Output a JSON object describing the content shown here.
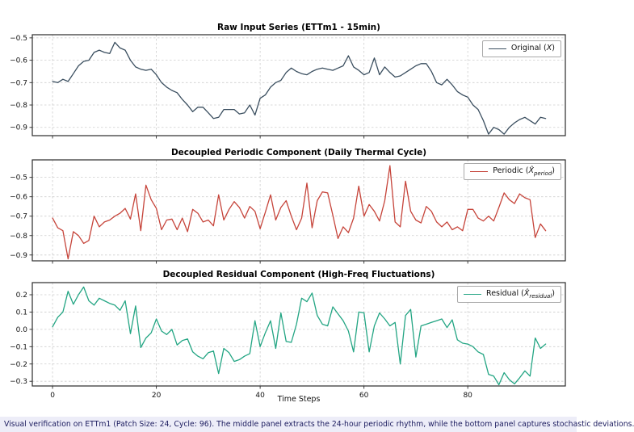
{
  "figure": {
    "caption": "Visual verification on ETTm1 (Patch Size: 24, Cycle: 96). The middle panel extracts the 24-hour periodic rhythm, while the bottom panel captures stochastic deviations.",
    "colors": {
      "original_line": "#3a4e5f",
      "periodic_line": "#c6443a",
      "residual_line": "#23a583",
      "caption_bg": "#ededf8",
      "caption_text": "#1b1b5e",
      "grid": "#cdcdcd",
      "spine": "#2b2b2b"
    }
  },
  "chart_data": [
    {
      "type": "line",
      "title": "Raw Input Series (ETTm1 - 15min)",
      "legend_position": "upper right",
      "legend": {
        "prefix": "Original (",
        "symbol": "X",
        "subscript": "",
        "suffix": ")"
      },
      "grid": true,
      "x_start": 0,
      "x_step": 1,
      "n": 96,
      "xlim": [
        -3.9,
        98.8
      ],
      "ylim": [
        -0.937,
        -0.486
      ],
      "xticks": [
        0,
        20,
        40,
        60,
        80
      ],
      "yticks": [
        -0.5,
        -0.6,
        -0.7,
        -0.8,
        -0.9
      ],
      "show_x_tick_labels": false,
      "series": [
        {
          "name": "Original (X)",
          "color": "#3a4e5f",
          "values": [
            -0.695,
            -0.7,
            -0.685,
            -0.695,
            -0.66,
            -0.625,
            -0.605,
            -0.6,
            -0.565,
            -0.555,
            -0.565,
            -0.57,
            -0.52,
            -0.545,
            -0.555,
            -0.6,
            -0.63,
            -0.64,
            -0.645,
            -0.64,
            -0.665,
            -0.7,
            -0.72,
            -0.735,
            -0.745,
            -0.775,
            -0.8,
            -0.83,
            -0.81,
            -0.81,
            -0.835,
            -0.86,
            -0.855,
            -0.82,
            -0.82,
            -0.82,
            -0.84,
            -0.835,
            -0.8,
            -0.845,
            -0.77,
            -0.755,
            -0.72,
            -0.7,
            -0.69,
            -0.655,
            -0.635,
            -0.65,
            -0.66,
            -0.665,
            -0.65,
            -0.64,
            -0.635,
            -0.64,
            -0.645,
            -0.635,
            -0.625,
            -0.58,
            -0.63,
            -0.645,
            -0.665,
            -0.655,
            -0.59,
            -0.665,
            -0.63,
            -0.655,
            -0.675,
            -0.67,
            -0.655,
            -0.64,
            -0.625,
            -0.615,
            -0.615,
            -0.65,
            -0.7,
            -0.71,
            -0.685,
            -0.71,
            -0.74,
            -0.755,
            -0.765,
            -0.8,
            -0.82,
            -0.87,
            -0.93,
            -0.9,
            -0.91,
            -0.93,
            -0.9,
            -0.88,
            -0.865,
            -0.855,
            -0.87,
            -0.885,
            -0.855,
            -0.86
          ]
        }
      ]
    },
    {
      "type": "line",
      "title": "Decoupled Periodic Component (Daily Thermal Cycle)",
      "legend_position": "upper right",
      "legend": {
        "prefix": "Periodic (",
        "symbol": "X̂",
        "subscript": "period",
        "suffix": ")"
      },
      "grid": true,
      "x_start": 0,
      "x_step": 1,
      "n": 96,
      "xlim": [
        -3.9,
        98.8
      ],
      "ylim": [
        -0.93,
        -0.41
      ],
      "xticks": [
        0,
        20,
        40,
        60,
        80
      ],
      "yticks": [
        -0.5,
        -0.6,
        -0.7,
        -0.8,
        -0.9
      ],
      "show_x_tick_labels": false,
      "series": [
        {
          "name": "Periodic (X̂_period)",
          "color": "#c6443a",
          "values": [
            -0.71,
            -0.76,
            -0.775,
            -0.92,
            -0.78,
            -0.8,
            -0.84,
            -0.825,
            -0.7,
            -0.755,
            -0.73,
            -0.72,
            -0.7,
            -0.685,
            -0.66,
            -0.715,
            -0.585,
            -0.775,
            -0.54,
            -0.615,
            -0.66,
            -0.77,
            -0.72,
            -0.715,
            -0.77,
            -0.71,
            -0.78,
            -0.665,
            -0.685,
            -0.73,
            -0.72,
            -0.75,
            -0.59,
            -0.72,
            -0.665,
            -0.625,
            -0.655,
            -0.71,
            -0.65,
            -0.675,
            -0.765,
            -0.68,
            -0.59,
            -0.72,
            -0.655,
            -0.62,
            -0.7,
            -0.77,
            -0.71,
            -0.53,
            -0.76,
            -0.62,
            -0.575,
            -0.58,
            -0.695,
            -0.815,
            -0.755,
            -0.785,
            -0.71,
            -0.545,
            -0.7,
            -0.64,
            -0.675,
            -0.725,
            -0.62,
            -0.44,
            -0.73,
            -0.755,
            -0.52,
            -0.675,
            -0.72,
            -0.735,
            -0.65,
            -0.675,
            -0.73,
            -0.755,
            -0.73,
            -0.77,
            -0.755,
            -0.775,
            -0.665,
            -0.665,
            -0.71,
            -0.725,
            -0.7,
            -0.725,
            -0.655,
            -0.58,
            -0.615,
            -0.635,
            -0.585,
            -0.605,
            -0.615,
            -0.81,
            -0.74,
            -0.775
          ]
        }
      ]
    },
    {
      "type": "line",
      "title": "Decoupled Residual Component (High-Freq Fluctuations)",
      "legend_position": "upper right",
      "legend": {
        "prefix": "Residual (",
        "symbol": "X̂",
        "subscript": "residual",
        "suffix": ")"
      },
      "grid": true,
      "xlabel": "Time Steps",
      "x_start": 0,
      "x_step": 1,
      "n": 96,
      "xlim": [
        -3.9,
        98.8
      ],
      "ylim": [
        -0.327,
        0.27
      ],
      "xticks": [
        0,
        20,
        40,
        60,
        80
      ],
      "yticks": [
        0.2,
        0.1,
        0.0,
        -0.1,
        -0.2,
        -0.3
      ],
      "show_x_tick_labels": true,
      "series": [
        {
          "name": "Residual (X̂_residual)",
          "color": "#23a583",
          "values": [
            0.015,
            0.07,
            0.1,
            0.22,
            0.145,
            0.2,
            0.245,
            0.165,
            0.14,
            0.18,
            0.165,
            0.15,
            0.14,
            0.11,
            0.165,
            -0.025,
            0.135,
            -0.105,
            -0.05,
            -0.02,
            0.06,
            -0.01,
            -0.03,
            0.0,
            -0.09,
            -0.065,
            -0.055,
            -0.13,
            -0.155,
            -0.17,
            -0.135,
            -0.125,
            -0.255,
            -0.11,
            -0.135,
            -0.185,
            -0.175,
            -0.155,
            -0.14,
            0.05,
            -0.1,
            -0.02,
            0.05,
            -0.11,
            0.095,
            -0.07,
            -0.075,
            0.03,
            0.18,
            0.16,
            0.21,
            0.08,
            0.03,
            0.02,
            0.13,
            0.09,
            0.05,
            -0.01,
            -0.13,
            0.1,
            0.095,
            -0.13,
            0.02,
            0.095,
            0.06,
            0.02,
            0.04,
            -0.2,
            0.08,
            0.115,
            -0.16,
            0.02,
            0.03,
            0.04,
            0.05,
            0.06,
            0.01,
            0.055,
            -0.06,
            -0.08,
            -0.085,
            -0.1,
            -0.13,
            -0.145,
            -0.26,
            -0.27,
            -0.32,
            -0.25,
            -0.29,
            -0.315,
            -0.28,
            -0.24,
            -0.27,
            -0.05,
            -0.11,
            -0.085
          ]
        }
      ]
    }
  ]
}
